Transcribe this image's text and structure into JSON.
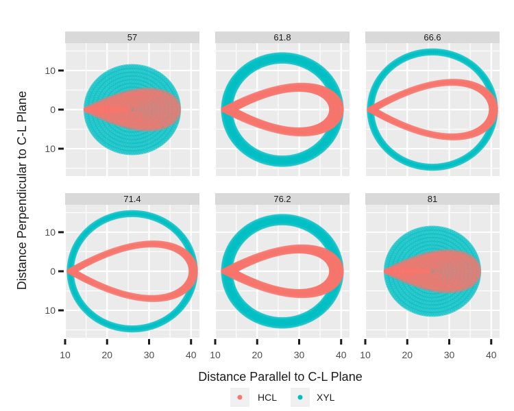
{
  "chart_data": {
    "type": "scatter",
    "facet_type": "facet_wrap",
    "xlabel": "Distance Parallel to C-L Plane",
    "ylabel": "Distance Perpendicular to C-L Plane",
    "x_ticks": [
      10,
      20,
      30,
      40
    ],
    "y_ticks": [
      10,
      0,
      10
    ],
    "y_tick_values": [
      10,
      0,
      -10
    ],
    "xlim": [
      10,
      42
    ],
    "ylim": [
      -17,
      17
    ],
    "grid": true,
    "legend": {
      "position": "bottom",
      "entries": [
        {
          "name": "HCL",
          "color": "#F8766D"
        },
        {
          "name": "XYL",
          "color": "#00BFC4"
        }
      ]
    },
    "panels": [
      {
        "label": "57",
        "series": [
          {
            "name": "XYL",
            "shape": "filled-disc",
            "center": [
              26,
              0
            ],
            "rx": 11,
            "ry": 11
          },
          {
            "name": "HCL",
            "shape": "filled-teardrop",
            "tip_x": 15,
            "right_x": 37,
            "half_height": 5
          }
        ]
      },
      {
        "label": "61.8",
        "series": [
          {
            "name": "XYL",
            "shape": "ring",
            "center": [
              26,
              0
            ],
            "rx": 14,
            "ry": 14,
            "thickness": 1.6
          },
          {
            "name": "HCL",
            "shape": "teardrop-ring",
            "tip_x": 12,
            "right_x": 40,
            "half_height": 6.2,
            "thickness": 1.1
          }
        ]
      },
      {
        "label": "66.6",
        "series": [
          {
            "name": "XYL",
            "shape": "ring",
            "center": [
              26,
              0
            ],
            "rx": 15,
            "ry": 15,
            "thickness": 0.5
          },
          {
            "name": "HCL",
            "shape": "teardrop-ring",
            "tip_x": 11,
            "right_x": 41,
            "half_height": 7.2,
            "thickness": 0.5
          }
        ]
      },
      {
        "label": "71.4",
        "series": [
          {
            "name": "XYL",
            "shape": "ring",
            "center": [
              26,
              0
            ],
            "rx": 15,
            "ry": 15,
            "thickness": 0.5
          },
          {
            "name": "HCL",
            "shape": "teardrop-ring",
            "tip_x": 11,
            "right_x": 41,
            "half_height": 7.2,
            "thickness": 0.5
          }
        ]
      },
      {
        "label": "76.2",
        "series": [
          {
            "name": "XYL",
            "shape": "ring",
            "center": [
              26,
              0
            ],
            "rx": 14,
            "ry": 14,
            "thickness": 1.6
          },
          {
            "name": "HCL",
            "shape": "teardrop-ring",
            "tip_x": 12,
            "right_x": 40,
            "half_height": 6.2,
            "thickness": 1.1
          }
        ]
      },
      {
        "label": "81",
        "series": [
          {
            "name": "XYL",
            "shape": "filled-disc",
            "center": [
              26,
              0
            ],
            "rx": 11,
            "ry": 11
          },
          {
            "name": "HCL",
            "shape": "filled-teardrop",
            "tip_x": 15,
            "right_x": 37,
            "half_height": 5
          }
        ]
      }
    ]
  },
  "colors": {
    "panel_bg": "#EBEBEB",
    "strip_bg": "#D9D9D9",
    "grid_major": "#FFFFFF",
    "axis_tick": "#1a1a1a"
  }
}
